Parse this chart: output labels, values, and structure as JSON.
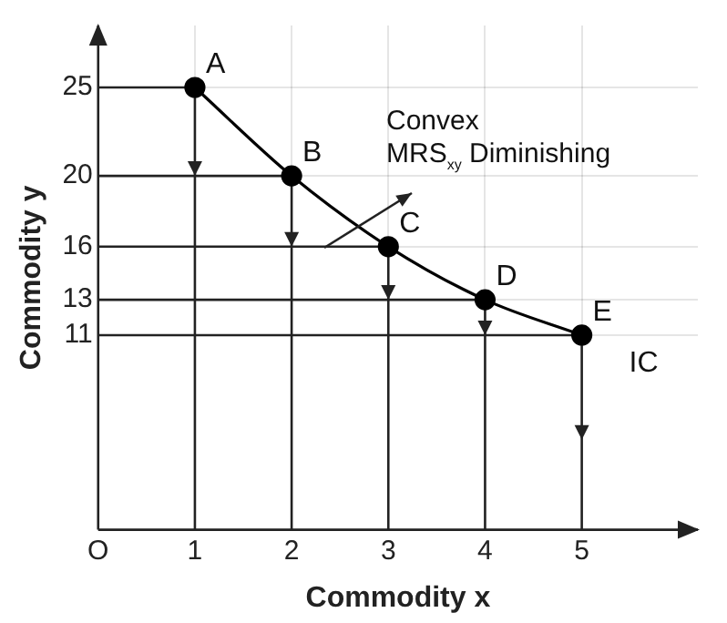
{
  "chart_data": {
    "type": "line",
    "xlabel": "Commodity x",
    "ylabel": "Commodity y",
    "x": [
      1,
      2,
      3,
      4,
      5
    ],
    "series": [
      {
        "name": "IC",
        "color": "#000000",
        "values": [
          25,
          20,
          16,
          13,
          11
        ]
      }
    ],
    "xlim": [
      0,
      6.2
    ],
    "ylim": [
      0,
      28.5
    ],
    "xticks": [
      {
        "value": 0,
        "label": "O"
      },
      1,
      2,
      3,
      4,
      5
    ],
    "yticks": [
      11,
      13,
      16,
      20,
      25
    ],
    "marker": "circle",
    "line_style": "solid",
    "grid": true,
    "legend": false,
    "annotations": [
      {
        "text": "A",
        "x": 1,
        "y": 25
      },
      {
        "text": "B",
        "x": 2,
        "y": 20
      },
      {
        "text": "C",
        "x": 3,
        "y": 16
      },
      {
        "text": "D",
        "x": 4,
        "y": 13
      },
      {
        "text": "E",
        "x": 5,
        "y": 11
      },
      "Convex",
      "MRS$_{xy}$ Diminishing"
    ]
  }
}
